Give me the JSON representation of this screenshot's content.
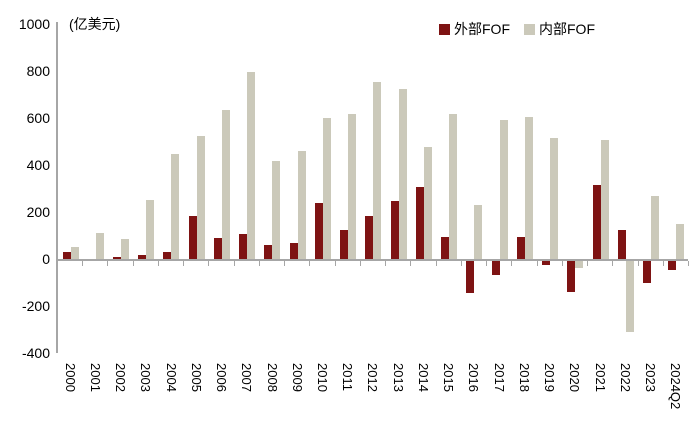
{
  "chart": {
    "unit_label": "(亿美元)",
    "axis_color": "#a6a6a6",
    "text_color": "#000000"
  },
  "chart_data": {
    "type": "bar",
    "title": "",
    "unit": "(亿美元)",
    "categories": [
      "2000",
      "2001",
      "2002",
      "2003",
      "2004",
      "2005",
      "2006",
      "2007",
      "2008",
      "2009",
      "2010",
      "2011",
      "2012",
      "2013",
      "2014",
      "2015",
      "2016",
      "2017",
      "2018",
      "2019",
      "2020",
      "2021",
      "2022",
      "2023",
      "2024Q2"
    ],
    "series": [
      {
        "name": "外部FOF",
        "color": "#7e1313",
        "values": [
          30,
          0,
          7,
          15,
          30,
          185,
          90,
          105,
          60,
          70,
          240,
          125,
          185,
          245,
          305,
          95,
          -135,
          -60,
          95,
          -15,
          -130,
          315,
          125,
          -95,
          -40
        ]
      },
      {
        "name": "内部FOF",
        "color": "#cbc9ba",
        "values": [
          50,
          110,
          85,
          250,
          445,
          525,
          635,
          795,
          415,
          460,
          600,
          615,
          755,
          725,
          475,
          615,
          230,
          590,
          605,
          515,
          -30,
          505,
          -300,
          270,
          150
        ]
      }
    ],
    "ylim": [
      -400,
      1000
    ],
    "yticks": [
      1000,
      800,
      600,
      400,
      200,
      0,
      -200,
      -400
    ],
    "grid": false,
    "legend_position": "top-right"
  }
}
